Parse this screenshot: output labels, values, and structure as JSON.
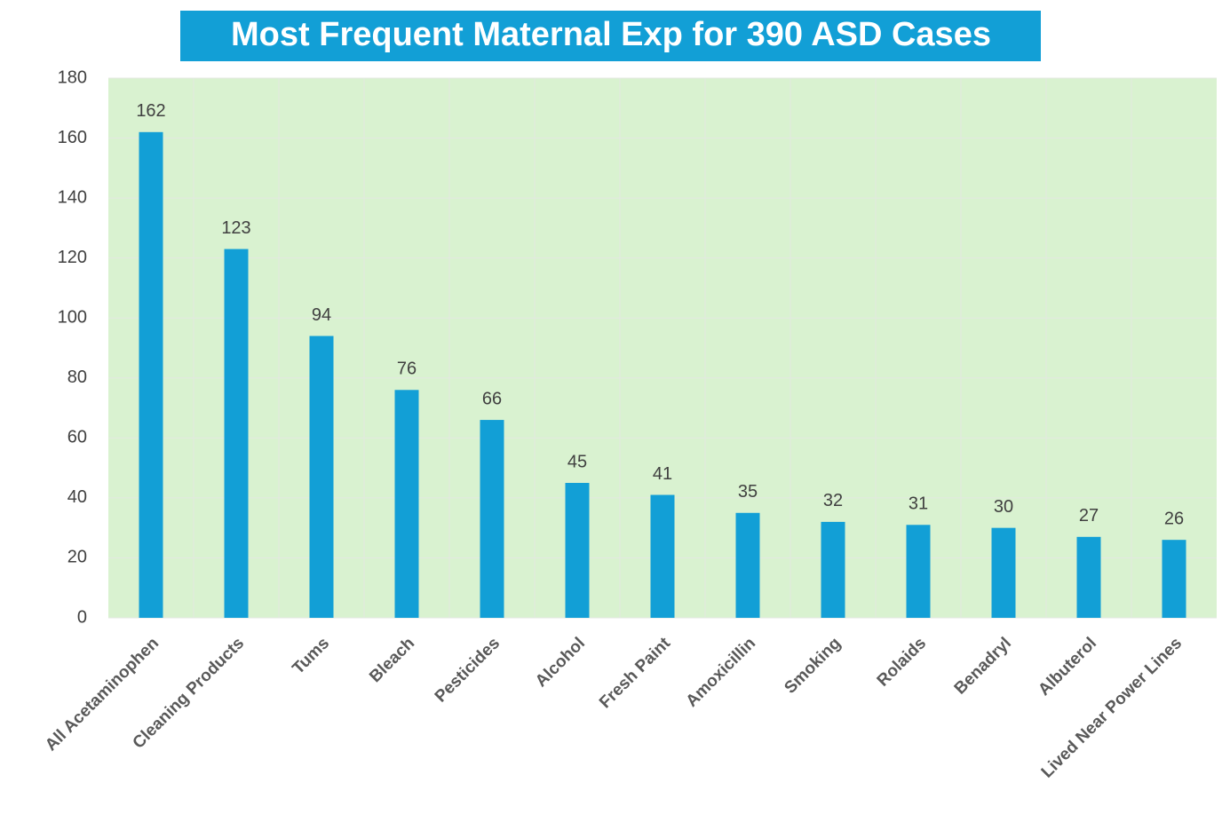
{
  "chart_data": {
    "type": "bar",
    "title": "Most Frequent Maternal Exp for 390 ASD Cases",
    "categories": [
      "All Acetaminophen",
      "Cleaning Products",
      "Tums",
      "Bleach",
      "Pesticides",
      "Alcohol",
      "Fresh Paint",
      "Amoxicillin",
      "Smoking",
      "Rolaids",
      "Benadryl",
      "Albuterol",
      "Lived Near Power Lines"
    ],
    "values": [
      162,
      123,
      94,
      76,
      66,
      45,
      41,
      35,
      32,
      31,
      30,
      27,
      26
    ],
    "color": "#129fd6",
    "ylim": [
      0,
      180
    ],
    "yticks": [
      0,
      20,
      40,
      60,
      80,
      100,
      120,
      140,
      160,
      180
    ],
    "grid": true
  }
}
